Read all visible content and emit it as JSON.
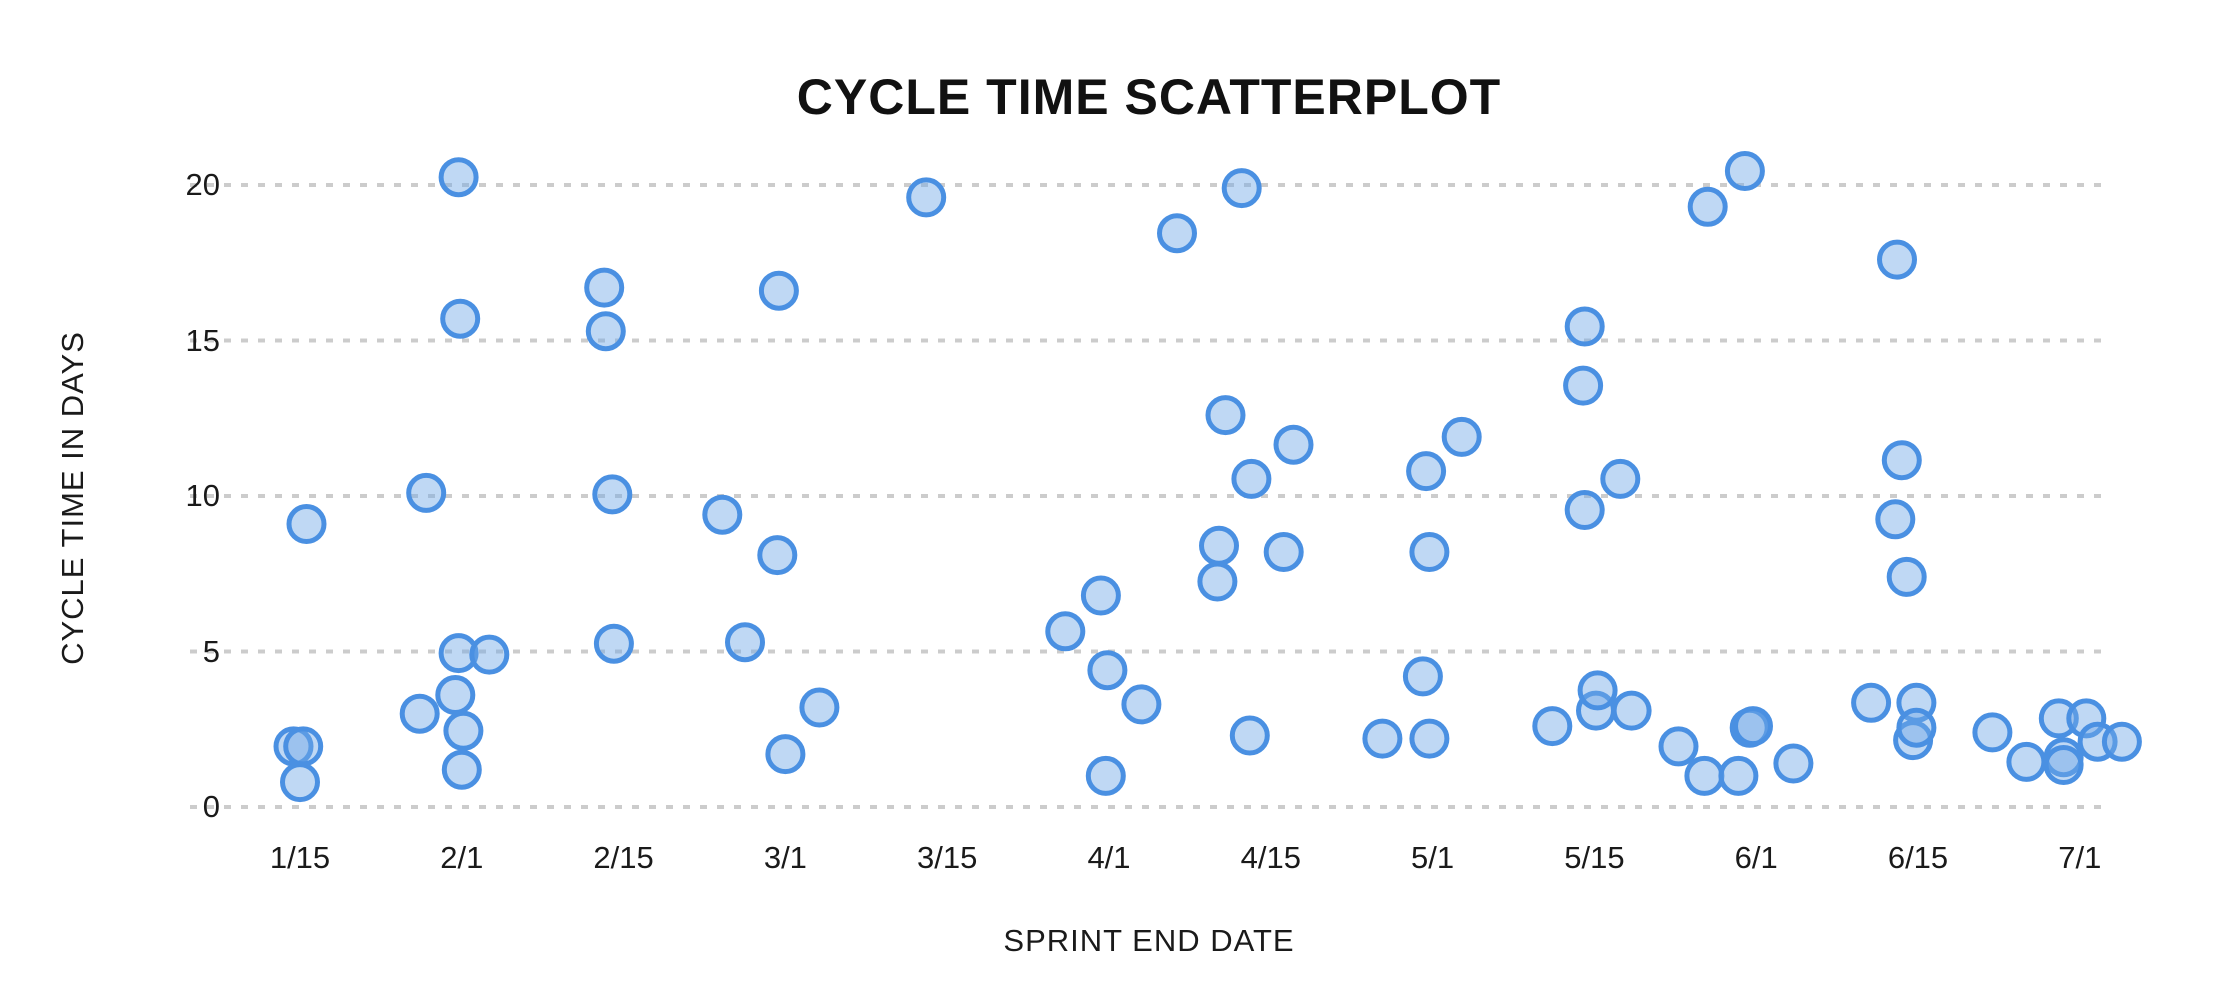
{
  "chart": {
    "title": "CYCLE TIME SCATTERPLOT",
    "y_axis_title": "CYCLE TIME IN DAYS",
    "x_axis_title": "SPRINT END DATE"
  },
  "chart_data": {
    "type": "scatter",
    "title": "CYCLE TIME SCATTERPLOT",
    "xlabel": "SPRINT END DATE",
    "ylabel": "CYCLE TIME IN DAYS",
    "x_tick_labels": [
      "1/15",
      "2/1",
      "2/15",
      "3/1",
      "3/15",
      "4/1",
      "4/15",
      "5/1",
      "5/15",
      "6/1",
      "6/15",
      "7/1"
    ],
    "y_ticks": [
      0,
      5,
      10,
      15,
      20
    ],
    "ylim": [
      0,
      21
    ],
    "grid": "horizontal-dotted",
    "legend": "none",
    "point_style": {
      "radius_px": 17.5,
      "fill": "rgba(114,168,230,0.45)",
      "stroke": "#4a90e2",
      "stroke_width_px": 5
    },
    "colors": {
      "gridline": "#cccccc",
      "text": "#1a1a1a",
      "title": "#111111",
      "background": "#ffffff"
    },
    "points_note": "x = position in half-month tick units (0 = 1/15, 1 = 2/1, ... 11 = 7/1); y = cycle time in days",
    "points": [
      [
        -0.04,
        1.95
      ],
      [
        0.02,
        1.95
      ],
      [
        0.0,
        0.8
      ],
      [
        0.04,
        9.1
      ],
      [
        0.74,
        3.0
      ],
      [
        0.78,
        10.1
      ],
      [
        0.98,
        20.25
      ],
      [
        0.99,
        15.7
      ],
      [
        0.98,
        4.95
      ],
      [
        1.17,
        4.9
      ],
      [
        0.96,
        3.6
      ],
      [
        1.01,
        2.45
      ],
      [
        1.0,
        1.2
      ],
      [
        1.88,
        16.7
      ],
      [
        1.89,
        15.3
      ],
      [
        1.93,
        10.05
      ],
      [
        1.94,
        5.25
      ],
      [
        2.61,
        9.4
      ],
      [
        2.75,
        5.3
      ],
      [
        2.95,
        8.1
      ],
      [
        2.96,
        16.6
      ],
      [
        3.0,
        1.7
      ],
      [
        3.21,
        3.2
      ],
      [
        3.87,
        19.6
      ],
      [
        4.73,
        5.65
      ],
      [
        4.95,
        6.8
      ],
      [
        4.99,
        4.4
      ],
      [
        5.2,
        3.3
      ],
      [
        4.98,
        1.0
      ],
      [
        5.42,
        18.45
      ],
      [
        5.82,
        19.9
      ],
      [
        5.72,
        12.6
      ],
      [
        5.68,
        8.4
      ],
      [
        5.67,
        7.25
      ],
      [
        5.88,
        10.55
      ],
      [
        5.87,
        2.3
      ],
      [
        6.08,
        8.2
      ],
      [
        6.14,
        11.65
      ],
      [
        6.69,
        2.2
      ],
      [
        6.94,
        4.2
      ],
      [
        6.96,
        10.8
      ],
      [
        6.98,
        8.2
      ],
      [
        6.98,
        2.2
      ],
      [
        7.18,
        11.9
      ],
      [
        7.74,
        2.6
      ],
      [
        7.93,
        13.55
      ],
      [
        7.94,
        15.45
      ],
      [
        7.94,
        9.55
      ],
      [
        8.01,
        3.1
      ],
      [
        8.02,
        3.75
      ],
      [
        8.16,
        10.55
      ],
      [
        8.23,
        3.1
      ],
      [
        8.52,
        1.95
      ],
      [
        8.68,
        1.0
      ],
      [
        8.89,
        1.0
      ],
      [
        8.7,
        19.3
      ],
      [
        8.93,
        20.45
      ],
      [
        8.96,
        2.55
      ],
      [
        8.98,
        2.6
      ],
      [
        9.23,
        1.4
      ],
      [
        9.71,
        3.35
      ],
      [
        9.86,
        9.25
      ],
      [
        9.87,
        17.6
      ],
      [
        9.9,
        11.15
      ],
      [
        9.93,
        7.4
      ],
      [
        9.97,
        2.15
      ],
      [
        9.99,
        3.35
      ],
      [
        9.99,
        2.55
      ],
      [
        10.46,
        2.4
      ],
      [
        10.67,
        1.45
      ],
      [
        10.87,
        2.85
      ],
      [
        10.9,
        1.6
      ],
      [
        10.9,
        1.35
      ],
      [
        11.04,
        2.85
      ],
      [
        11.11,
        2.1
      ],
      [
        11.26,
        2.1
      ]
    ]
  }
}
